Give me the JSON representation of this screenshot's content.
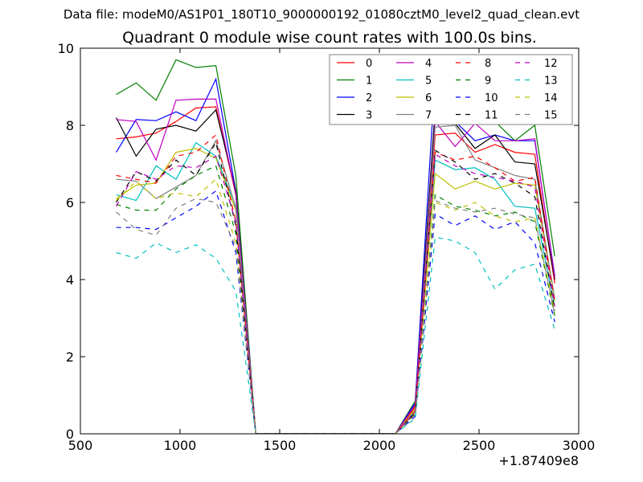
{
  "header": {
    "data_file": "Data file: modeM0/AS1P01_180T10_9000000192_01080cztM0_level2_quad_clean.evt"
  },
  "chart_data": {
    "type": "line",
    "title": "Quadrant 0 module wise count rates with 100.0s bins.",
    "xlabel": "",
    "ylabel": "",
    "xlim": [
      500,
      3000
    ],
    "ylim": [
      0,
      10
    ],
    "x_offset_label": "+1.87409e8",
    "x_ticks": [
      500,
      1000,
      1500,
      2000,
      2500,
      3000
    ],
    "y_ticks": [
      0,
      2,
      4,
      6,
      8,
      10
    ],
    "legend_position": "top-right",
    "x": [
      680,
      780,
      880,
      980,
      1080,
      1180,
      1280,
      1380,
      1480,
      1580,
      1680,
      1780,
      1880,
      1980,
      2080,
      2180,
      2280,
      2380,
      2480,
      2580,
      2680,
      2780,
      2880
    ],
    "series": [
      {
        "name": "0",
        "color": "#ff0000",
        "dash": "solid",
        "values": [
          7.65,
          7.7,
          7.8,
          8.1,
          8.45,
          8.48,
          6.2,
          0,
          0,
          0,
          0,
          0,
          0,
          0,
          0,
          0.7,
          7.75,
          7.8,
          7.3,
          7.5,
          7.3,
          7.25,
          3.9
        ]
      },
      {
        "name": "1",
        "color": "#008000",
        "dash": "solid",
        "values": [
          8.8,
          9.1,
          8.65,
          9.7,
          9.5,
          9.55,
          6.7,
          0,
          0,
          0,
          0,
          0,
          0,
          0,
          0,
          0.85,
          8.4,
          8.1,
          8.45,
          8.1,
          7.6,
          8.0,
          4.6
        ]
      },
      {
        "name": "2",
        "color": "#0000ff",
        "dash": "solid",
        "values": [
          7.3,
          8.15,
          8.12,
          8.35,
          8.12,
          9.2,
          6.3,
          0,
          0,
          0,
          0,
          0,
          0,
          0,
          0,
          0.8,
          9.3,
          8.1,
          7.6,
          7.75,
          7.6,
          7.6,
          4.1
        ]
      },
      {
        "name": "3",
        "color": "#000000",
        "dash": "solid",
        "values": [
          8.2,
          7.2,
          7.9,
          8.0,
          7.85,
          8.4,
          6.3,
          0,
          0,
          0,
          0,
          0,
          0,
          0,
          0,
          0.75,
          8.4,
          8.05,
          7.4,
          7.75,
          7.05,
          7.0,
          4.0
        ]
      },
      {
        "name": "4",
        "color": "#bf00bf",
        "dash": "solid",
        "values": [
          8.15,
          8.1,
          7.1,
          8.65,
          8.68,
          8.68,
          6.2,
          0,
          0,
          0,
          0,
          0,
          0,
          0,
          0,
          0.75,
          8.1,
          7.45,
          8.05,
          7.6,
          7.6,
          7.65,
          4.05
        ]
      },
      {
        "name": "5",
        "color": "#00bfbf",
        "dash": "solid",
        "values": [
          6.2,
          6.05,
          6.95,
          6.6,
          7.55,
          7.2,
          5.9,
          0,
          0,
          0,
          0,
          0,
          0,
          0,
          0,
          0.6,
          7.1,
          6.85,
          6.9,
          6.6,
          5.9,
          5.85,
          3.3
        ]
      },
      {
        "name": "6",
        "color": "#bfbf00",
        "dash": "solid",
        "values": [
          6.1,
          6.45,
          6.5,
          7.3,
          7.4,
          7.15,
          5.8,
          0,
          0,
          0,
          0,
          0,
          0,
          0,
          0,
          0.65,
          6.75,
          6.35,
          6.55,
          6.35,
          6.5,
          6.45,
          3.45
        ]
      },
      {
        "name": "7",
        "color": "#808080",
        "dash": "solid",
        "values": [
          6.6,
          6.55,
          6.1,
          6.4,
          6.7,
          7.6,
          5.85,
          0,
          0,
          0,
          0,
          0,
          0,
          0,
          0,
          0.55,
          7.95,
          8.0,
          7.1,
          6.9,
          6.7,
          6.6,
          3.5
        ]
      },
      {
        "name": "8",
        "color": "#ff0000",
        "dash": "dashed",
        "values": [
          6.7,
          6.6,
          6.5,
          7.2,
          7.3,
          7.75,
          5.5,
          0,
          0,
          0,
          0,
          0,
          0,
          0,
          0,
          0.6,
          7.3,
          7.1,
          7.2,
          6.9,
          6.55,
          6.65,
          3.4
        ]
      },
      {
        "name": "9",
        "color": "#008000",
        "dash": "dashed",
        "values": [
          5.95,
          5.8,
          5.8,
          6.35,
          6.7,
          6.95,
          5.2,
          0,
          0,
          0,
          0,
          0,
          0,
          0,
          0,
          0.5,
          6.2,
          5.9,
          5.8,
          5.65,
          5.75,
          5.5,
          3.05
        ]
      },
      {
        "name": "10",
        "color": "#0000ff",
        "dash": "dashed",
        "values": [
          5.35,
          5.35,
          5.3,
          5.6,
          5.9,
          6.3,
          4.7,
          0,
          0,
          0,
          0,
          0,
          0,
          0,
          0,
          0.45,
          5.7,
          5.4,
          5.65,
          5.3,
          5.5,
          4.95,
          2.9
        ]
      },
      {
        "name": "11",
        "color": "#000000",
        "dash": "dashed",
        "values": [
          6.0,
          6.8,
          6.55,
          7.1,
          6.7,
          7.55,
          5.4,
          0,
          0,
          0,
          0,
          0,
          0,
          0,
          0,
          0.55,
          7.35,
          7.05,
          6.6,
          6.75,
          6.5,
          6.15,
          3.2
        ]
      },
      {
        "name": "12",
        "color": "#bf00bf",
        "dash": "dashed",
        "values": [
          5.9,
          6.8,
          6.6,
          6.95,
          6.9,
          7.2,
          5.5,
          0,
          0,
          0,
          0,
          0,
          0,
          0,
          0,
          0.6,
          7.25,
          6.95,
          6.75,
          6.65,
          6.55,
          6.4,
          3.3
        ]
      },
      {
        "name": "13",
        "color": "#00bfbf",
        "dash": "dashed",
        "values": [
          4.7,
          4.55,
          4.95,
          4.7,
          4.9,
          4.55,
          3.7,
          0,
          0,
          0,
          0,
          0,
          0,
          0,
          0,
          0.4,
          5.1,
          5.0,
          4.7,
          3.75,
          4.25,
          4.4,
          2.7
        ]
      },
      {
        "name": "14",
        "color": "#bfbf00",
        "dash": "dashed",
        "values": [
          6.05,
          6.55,
          6.1,
          6.25,
          6.15,
          6.6,
          4.95,
          0,
          0,
          0,
          0,
          0,
          0,
          0,
          0,
          0.5,
          6.0,
          5.8,
          6.0,
          5.65,
          5.5,
          5.6,
          3.15
        ]
      },
      {
        "name": "15",
        "color": "#808080",
        "dash": "dashed",
        "values": [
          5.75,
          5.3,
          5.15,
          5.85,
          6.1,
          6.0,
          4.85,
          0,
          0,
          0,
          0,
          0,
          0,
          0,
          0,
          0.5,
          6.05,
          5.85,
          5.75,
          5.85,
          5.7,
          5.6,
          3.1
        ]
      }
    ]
  }
}
